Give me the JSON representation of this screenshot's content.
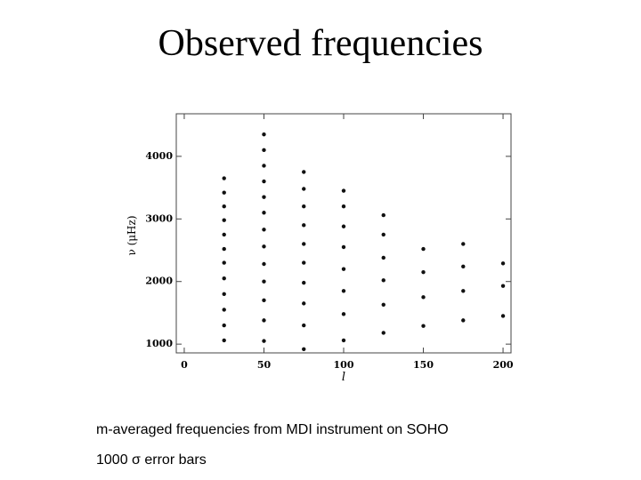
{
  "title": "Observed frequencies",
  "chart_data": {
    "type": "scatter",
    "xlabel": "l",
    "ylabel": "ν (μHz)",
    "x": [
      25,
      50,
      75,
      100,
      125,
      150,
      175,
      200
    ],
    "series": [
      {
        "color": "#111111",
        "values": [
          null,
          null,
          920,
          1060,
          1180,
          1290,
          1380,
          1450
        ]
      },
      {
        "color": "#111111",
        "values": [
          null,
          1050,
          1300,
          1480,
          1630,
          1750,
          1850,
          1930
        ]
      },
      {
        "color": "#111111",
        "values": [
          1060,
          1380,
          1650,
          1850,
          2020,
          2150,
          2240,
          2290
        ]
      },
      {
        "color": "#111111",
        "values": [
          1300,
          1700,
          1980,
          2200,
          2380,
          2520,
          2600,
          null
        ]
      },
      {
        "color": "#111111",
        "values": [
          1550,
          2000,
          2300,
          2550,
          2750,
          null,
          null,
          null
        ]
      },
      {
        "color": "#111111",
        "values": [
          1800,
          2280,
          2600,
          2880,
          3060,
          null,
          null,
          null
        ]
      },
      {
        "color": "#111111",
        "values": [
          2050,
          2560,
          2900,
          3200,
          null,
          null,
          null,
          null
        ]
      },
      {
        "color": "#111111",
        "values": [
          2300,
          2830,
          3200,
          3450,
          null,
          null,
          null,
          null
        ]
      },
      {
        "color": "#111111",
        "values": [
          2520,
          3100,
          3480,
          null,
          null,
          null,
          null,
          null
        ]
      },
      {
        "color": "#111111",
        "values": [
          2750,
          3350,
          3750,
          null,
          null,
          null,
          null,
          null
        ]
      },
      {
        "color": "#111111",
        "values": [
          2980,
          3600,
          null,
          null,
          null,
          null,
          null,
          null
        ]
      },
      {
        "color": "#111111",
        "values": [
          3200,
          3850,
          null,
          null,
          null,
          null,
          null,
          null
        ]
      },
      {
        "color": "#111111",
        "values": [
          3420,
          4100,
          null,
          null,
          null,
          null,
          null,
          null
        ]
      },
      {
        "color": "#111111",
        "values": [
          3650,
          4350,
          null,
          null,
          null,
          null,
          null,
          null
        ]
      }
    ],
    "xlim": [
      -5,
      205
    ],
    "ylim": [
      860,
      4680
    ],
    "xticks": [
      0,
      50,
      100,
      150,
      200
    ],
    "yticks": [
      1000,
      2000,
      3000,
      4000
    ]
  },
  "caption": [
    "m-averaged frequencies from MDI instrument on SOHO",
    "1000 σ error bars"
  ]
}
